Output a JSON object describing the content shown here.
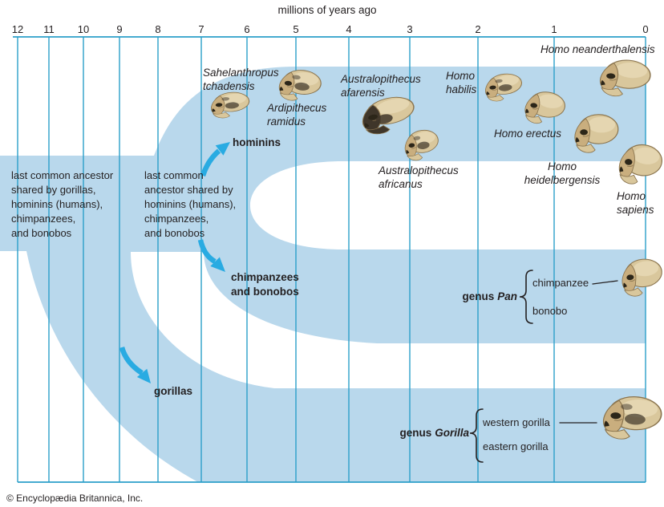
{
  "axis": {
    "title": "millions of years ago",
    "ticks": [
      "12",
      "11",
      "10",
      "9",
      "8",
      "7",
      "6",
      "5",
      "4",
      "3",
      "2",
      "1",
      "0"
    ]
  },
  "notes": {
    "note1_lines": [
      "last common ancestor",
      "shared by gorillas,",
      "hominins (humans),",
      "chimpanzees,",
      "and bonobos"
    ],
    "note2_lines": [
      "last common",
      "ancestor shared by",
      "hominins (humans),",
      "chimpanzees,",
      "and bonobos"
    ]
  },
  "branch_labels": {
    "hominins": "hominins",
    "chimps_line1": "chimpanzees",
    "chimps_line2": "and bonobos",
    "gorillas": "gorillas"
  },
  "species": {
    "sahelanthropus": [
      "Sahelanthropus",
      "tchadensis"
    ],
    "ardipithecus": [
      "Ardipithecus",
      "ramidus"
    ],
    "afarensis": [
      "Australopithecus",
      "afarensis"
    ],
    "africanus": [
      "Australopithecus",
      "africanus"
    ],
    "habilis": [
      "Homo",
      "habilis"
    ],
    "neanderthalensis": [
      "Homo neanderthalensis"
    ],
    "erectus": [
      "Homo erectus"
    ],
    "heidelbergensis": [
      "Homo",
      "heidelbergensis"
    ],
    "sapiens": [
      "Homo",
      "sapiens"
    ]
  },
  "groups": {
    "pan": {
      "prefix": "genus",
      "name": "Pan",
      "member1": "chimpanzee",
      "member2": "bonobo"
    },
    "gorilla": {
      "prefix": "genus",
      "name": "Gorilla",
      "member1": "western gorilla",
      "member2": "eastern gorilla"
    }
  },
  "credit": "© Encyclopædia Britannica, Inc.",
  "colors": {
    "band": "#b9d8ec",
    "grid": "#2b9fc9",
    "arrow": "#29abe2",
    "text": "#231f20",
    "skull_base": "#d9c79c",
    "skull_mid": "#c9ae7e",
    "skull_dark": "#3f362a",
    "skull_outline": "#8a744e"
  }
}
